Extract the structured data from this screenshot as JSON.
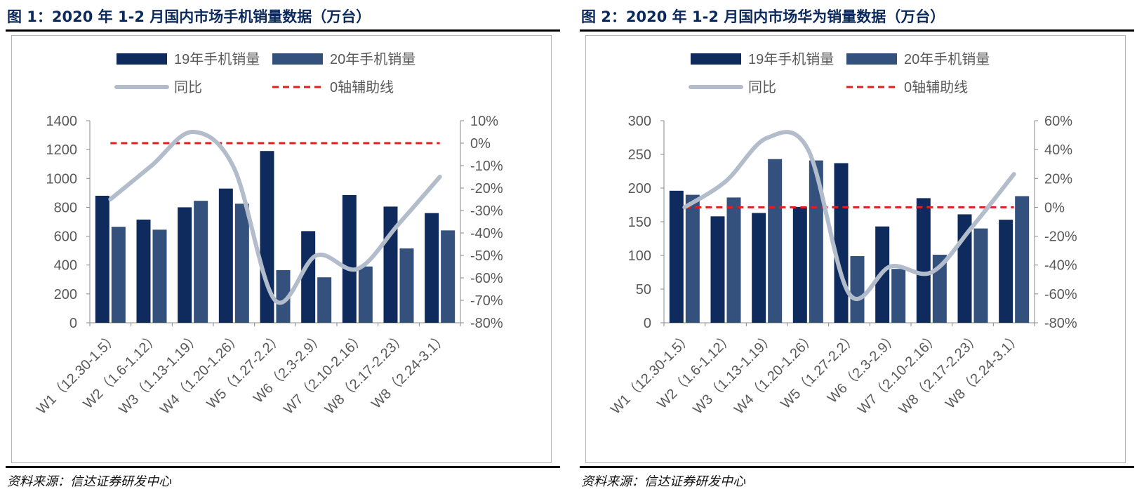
{
  "panels": [
    {
      "title": "图 1：2020 年 1-2 月国内市场手机销量数据（万台）",
      "source": "资料来源：信达证券研发中心",
      "chart_data": {
        "type": "bar",
        "categories": [
          "W1（12.30-1.5）",
          "W2（1.6-1.12）",
          "W3（1.13-1.19）",
          "W4（1.20-1.26）",
          "W5（1.27-2.2）",
          "W6（2.3-2.9）",
          "W7（2.10-2.16）",
          "W8（2.17-2.23）",
          "W8（2.24-3.1）"
        ],
        "series": [
          {
            "name": "19年手机销量",
            "kind": "bar",
            "axis": "left",
            "color": "#0f2b5e",
            "values": [
              880,
              715,
              800,
              930,
              1190,
              635,
              885,
              805,
              760
            ]
          },
          {
            "name": "20年手机销量",
            "kind": "bar",
            "axis": "left",
            "color": "#34507d",
            "values": [
              665,
              645,
              845,
              825,
              365,
              315,
              390,
              515,
              640
            ]
          },
          {
            "name": "同比",
            "kind": "line",
            "axis": "right",
            "color": "#b2bccb",
            "values": [
              -25,
              -10,
              5,
              -11,
              -70,
              -50,
              -56,
              -36,
              -15
            ]
          },
          {
            "name": "0轴辅助线",
            "kind": "dashed",
            "axis": "right",
            "color": "#e02020",
            "values": [
              0,
              0,
              0,
              0,
              0,
              0,
              0,
              0,
              0
            ]
          }
        ],
        "ylim": [
          0,
          1400
        ],
        "yticks": [
          "1400",
          "1200",
          "1000",
          "800",
          "600",
          "400",
          "200",
          "0"
        ],
        "y2lim": [
          -80,
          10
        ],
        "y2ticks": [
          "10%",
          "0%",
          "-10%",
          "-20%",
          "-30%",
          "-40%",
          "-50%",
          "-60%",
          "-70%",
          "-80%"
        ],
        "legend": "top"
      }
    },
    {
      "title": "图 2：2020 年 1-2 月国内市场华为销量数据（万台）",
      "source": "资料来源：信达证券研发中心",
      "chart_data": {
        "type": "bar",
        "categories": [
          "W1（12.30-1.5）",
          "W2（1.6-1.12）",
          "W3（1.13-1.19）",
          "W4（1.20-1.26）",
          "W5（1.27-2.2）",
          "W6（2.3-2.9）",
          "W7（2.10-2.16）",
          "W8（2.17-2.23）",
          "W8（2.24-3.1）"
        ],
        "series": [
          {
            "name": "19年手机销量",
            "kind": "bar",
            "axis": "left",
            "color": "#0f2b5e",
            "values": [
              196,
              158,
              163,
              172,
              237,
              143,
              185,
              161,
              153
            ]
          },
          {
            "name": "20年手机销量",
            "kind": "bar",
            "axis": "left",
            "color": "#34507d",
            "values": [
              190,
              186,
              243,
              241,
              99,
              80,
              101,
              140,
              188
            ]
          },
          {
            "name": "同比",
            "kind": "line",
            "axis": "right",
            "color": "#b2bccb",
            "values": [
              0,
              18,
              48,
              40,
              -60,
              -41,
              -45,
              -13,
              23
            ]
          },
          {
            "name": "0轴辅助线",
            "kind": "dashed",
            "axis": "right",
            "color": "#e02020",
            "values": [
              0,
              0,
              0,
              0,
              0,
              0,
              0,
              0,
              0
            ]
          }
        ],
        "ylim": [
          0,
          300
        ],
        "yticks": [
          "300",
          "250",
          "200",
          "150",
          "100",
          "50",
          "0"
        ],
        "y2lim": [
          -80,
          60
        ],
        "y2ticks": [
          "60%",
          "40%",
          "20%",
          "0%",
          "-20%",
          "-40%",
          "-60%",
          "-80%"
        ],
        "legend": "top"
      }
    }
  ]
}
